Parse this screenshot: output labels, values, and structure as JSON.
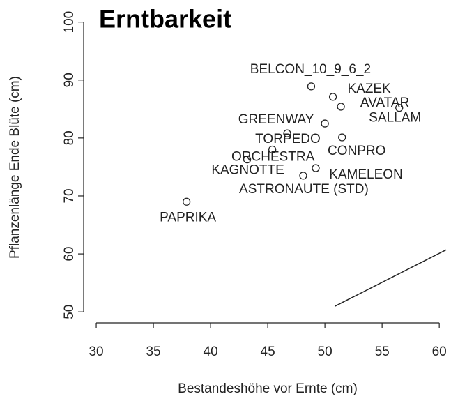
{
  "chart_data": {
    "type": "scatter",
    "title": "Erntbarkeit",
    "x_label": "Bestandeshöhe vor Ernte (cm)",
    "y_label": "Pflanzenlänge Ende Blüte (cm)",
    "point_labels": [
      "BELCON_10_9_6_2",
      "KAZEK",
      "AVATAR",
      "SALLAM",
      "GREENWAY",
      "TORPEDO",
      "CONPRO",
      "ORCHESTRA",
      "KAGNOTTE",
      "KAMELEON",
      "ASTRONAUTE (STD)",
      "PAPRIKA"
    ],
    "x": [
      48.8,
      50.7,
      51.4,
      56.5,
      50.0,
      46.7,
      51.5,
      45.4,
      43.2,
      49.2,
      48.1,
      37.9
    ],
    "y": [
      88.9,
      87.1,
      85.4,
      85.2,
      82.5,
      80.8,
      80.1,
      78.0,
      76.3,
      74.8,
      73.5,
      69.0
    ],
    "line": {
      "x": [
        50.9,
        60.6
      ],
      "y": [
        51.0,
        60.7
      ]
    },
    "color": "#222222",
    "xlim": [
      28.9,
      60.6
    ],
    "ylim": [
      48.1,
      102
    ],
    "xticks": [
      30,
      35,
      40,
      45,
      50,
      55,
      60
    ],
    "yticks": [
      50,
      60,
      70,
      80,
      90,
      100
    ]
  }
}
